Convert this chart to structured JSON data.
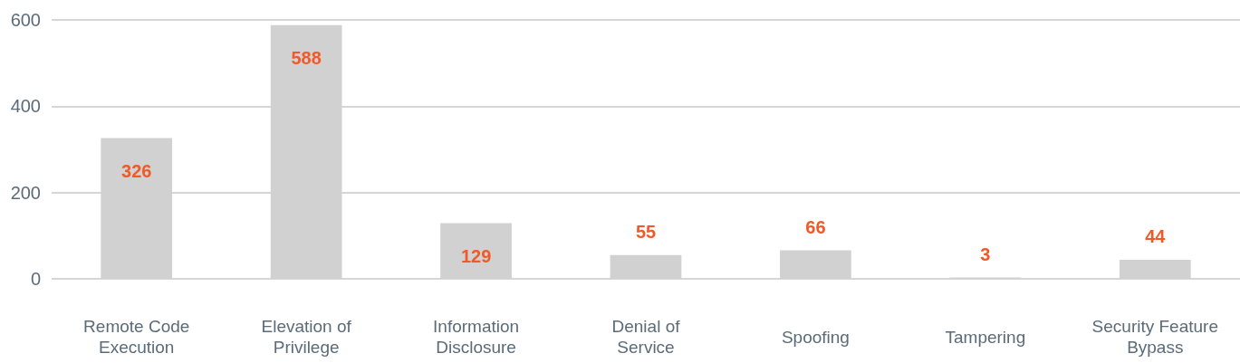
{
  "chart_data": {
    "type": "bar",
    "categories": [
      "Remote Code Execution",
      "Elevation of Privilege",
      "Information Disclosure",
      "Denial of Service",
      "Spoofing",
      "Tampering",
      "Security Feature Bypass"
    ],
    "values": [
      326,
      588,
      129,
      55,
      66,
      3,
      44
    ],
    "color": "#d0d1d0",
    "ylim": [
      0,
      600
    ],
    "yticks": [
      0,
      200,
      400,
      600
    ],
    "grid": "y",
    "data_labels": true
  }
}
